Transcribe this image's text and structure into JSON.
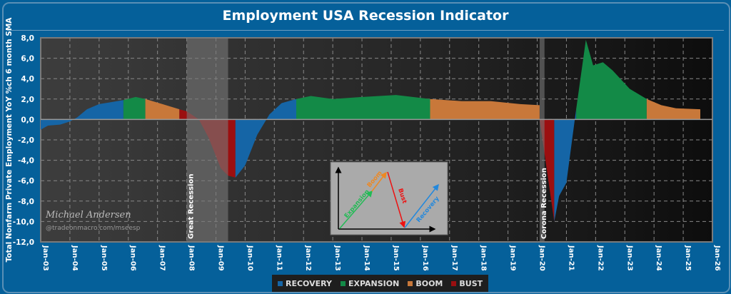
{
  "chart_data": {
    "type": "area",
    "title": "Employment USA Recession Indicator",
    "ylabel": "Total Nonfarm Private Employment YoY %ch 6 month SMA",
    "xlabel": "",
    "ylim": [
      -12,
      8
    ],
    "yticks": [
      "8,0",
      "6,0",
      "4,0",
      "2,0",
      "0,0",
      "-2,0",
      "-4,0",
      "-6,0",
      "-8,0",
      "-10,0",
      "-12,0"
    ],
    "ytick_values": [
      8,
      6,
      4,
      2,
      0,
      -2,
      -4,
      -6,
      -8,
      -10,
      -12
    ],
    "xlim": [
      "2003-01",
      "2026-01"
    ],
    "xticks": [
      "Jan-03",
      "Jan-04",
      "Jan-05",
      "Jan-06",
      "Jan-07",
      "Jan-08",
      "Jan-09",
      "Jan-10",
      "Jan-11",
      "Jan-12",
      "Jan-13",
      "Jan-14",
      "Jan-15",
      "Jan-16",
      "Jan-17",
      "Jan-18",
      "Jan-19",
      "Jan-20",
      "Jan-21",
      "Jan-22",
      "Jan-23",
      "Jan-24",
      "Jan-25",
      "Jan-26"
    ],
    "grid": true,
    "legend_position": "bottom",
    "phases": {
      "recovery": {
        "label": "RECOVERY",
        "color": "#1565a6"
      },
      "expansion": {
        "label": "EXPANSION",
        "color": "#138a47"
      },
      "boom": {
        "label": "BOOM",
        "color": "#c8783a"
      },
      "bust": {
        "label": "BUST",
        "color": "#9b0f10"
      }
    },
    "segments": [
      {
        "phase": "recovery",
        "points": [
          [
            "2003-01",
            -1.0
          ],
          [
            "2003-04",
            -0.6
          ],
          [
            "2003-09",
            -0.5
          ],
          [
            "2004-01",
            -0.2
          ],
          [
            "2004-04",
            0.2
          ],
          [
            "2004-08",
            1.0
          ],
          [
            "2005-01",
            1.5
          ],
          [
            "2005-06",
            1.7
          ],
          [
            "2005-11",
            1.9
          ]
        ]
      },
      {
        "phase": "expansion",
        "points": [
          [
            "2005-11",
            1.9
          ],
          [
            "2006-04",
            2.2
          ],
          [
            "2006-08",
            2.0
          ]
        ]
      },
      {
        "phase": "boom",
        "points": [
          [
            "2006-08",
            2.0
          ],
          [
            "2007-03",
            1.5
          ],
          [
            "2007-10",
            1.0
          ]
        ]
      },
      {
        "phase": "bust",
        "points": [
          [
            "2007-10",
            1.0
          ],
          [
            "2008-01",
            0.8
          ],
          [
            "2008-06",
            0.0
          ],
          [
            "2008-10",
            -1.8
          ],
          [
            "2009-03",
            -4.8
          ],
          [
            "2009-06",
            -5.5
          ],
          [
            "2009-09",
            -5.7
          ]
        ]
      },
      {
        "phase": "recovery",
        "points": [
          [
            "2009-09",
            -5.7
          ],
          [
            "2010-01",
            -4.5
          ],
          [
            "2010-06",
            -1.5
          ],
          [
            "2010-11",
            0.5
          ],
          [
            "2011-04",
            1.6
          ],
          [
            "2011-10",
            2.0
          ]
        ]
      },
      {
        "phase": "expansion",
        "points": [
          [
            "2011-10",
            2.0
          ],
          [
            "2012-04",
            2.3
          ],
          [
            "2013-01",
            2.0
          ],
          [
            "2014-01",
            2.2
          ],
          [
            "2015-03",
            2.4
          ],
          [
            "2016-05",
            2.0
          ]
        ]
      },
      {
        "phase": "boom",
        "points": [
          [
            "2016-05",
            2.0
          ],
          [
            "2017-06",
            1.8
          ],
          [
            "2018-06",
            1.8
          ],
          [
            "2019-06",
            1.5
          ],
          [
            "2020-02",
            1.4
          ]
        ]
      },
      {
        "phase": "bust",
        "points": [
          [
            "2020-02",
            0.0
          ],
          [
            "2020-08",
            -10.0
          ]
        ]
      },
      {
        "phase": "recovery",
        "points": [
          [
            "2020-08",
            -10.0
          ],
          [
            "2020-10",
            -7.5
          ],
          [
            "2021-01",
            -6.2
          ],
          [
            "2021-05",
            1.0
          ]
        ]
      },
      {
        "phase": "expansion",
        "points": [
          [
            "2021-05",
            1.0
          ],
          [
            "2021-09",
            7.8
          ],
          [
            "2021-12",
            5.3
          ],
          [
            "2022-04",
            5.6
          ],
          [
            "2022-08",
            4.8
          ],
          [
            "2023-03",
            3.0
          ],
          [
            "2023-10",
            2.0
          ]
        ]
      },
      {
        "phase": "boom",
        "points": [
          [
            "2023-10",
            2.0
          ],
          [
            "2024-04",
            1.4
          ],
          [
            "2024-10",
            1.1
          ],
          [
            "2025-08",
            1.0
          ]
        ]
      }
    ],
    "recessions": [
      {
        "label": "Great Recession",
        "start": "2008-01",
        "end": "2009-06"
      },
      {
        "label": "Corona Recession",
        "start": "2020-02",
        "end": "2020-04"
      }
    ]
  },
  "watermark": {
    "name": "Michael Andersen",
    "handle": "@tradeonmacro.com/mseesp"
  },
  "inset": {
    "expansion": "Expansion",
    "boom": "Boom",
    "bust": "Bust",
    "recovery": "Recovery"
  }
}
